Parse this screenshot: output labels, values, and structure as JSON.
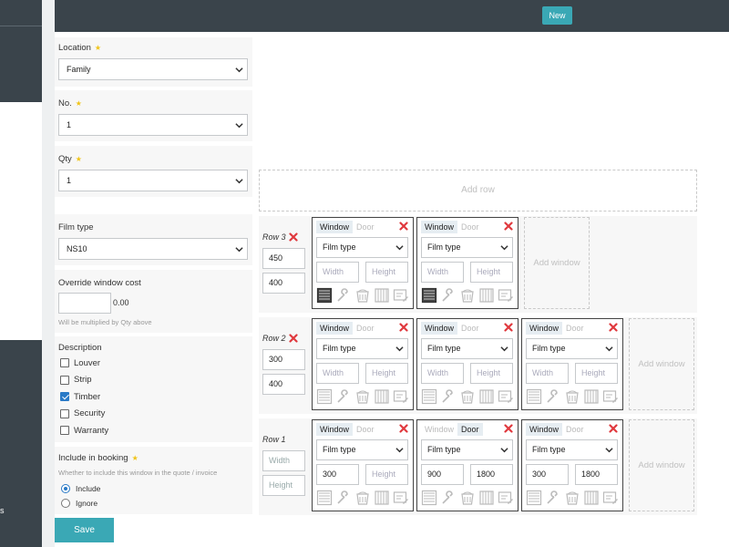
{
  "sidebar": {
    "fragment": "s"
  },
  "header": {
    "new_label": "New"
  },
  "form": {
    "location": {
      "label": "Location",
      "value": "Family"
    },
    "number": {
      "label": "No.",
      "value": "1"
    },
    "qty": {
      "label": "Qty",
      "value": "1"
    },
    "film_type": {
      "label": "Film type",
      "value": "NS10"
    },
    "override": {
      "label": "Override window cost",
      "value": "",
      "computed": "0.00",
      "help": "Will be multiplied by Qty above"
    },
    "description": {
      "label": "Description",
      "options": [
        {
          "label": "Louver",
          "checked": false
        },
        {
          "label": "Strip",
          "checked": false
        },
        {
          "label": "Timber",
          "checked": true
        },
        {
          "label": "Security",
          "checked": false
        },
        {
          "label": "Warranty",
          "checked": false
        }
      ]
    },
    "booking": {
      "label": "Include in booking",
      "help": "Whether to include this window in the quote / invoice",
      "options": [
        {
          "label": "Include",
          "selected": true
        },
        {
          "label": "Ignore",
          "selected": false
        }
      ]
    },
    "save_label": "Save"
  },
  "grid": {
    "add_row_label": "Add row",
    "add_window_label": "Add window",
    "width_placeholder": "Width",
    "height_placeholder": "Height",
    "film_placeholder": "Film type",
    "tab_window": "Window",
    "tab_door": "Door",
    "rows": [
      {
        "label": "Row 3",
        "width": "450",
        "height": "400",
        "windows": [
          {
            "type": "Window",
            "film": "Film type",
            "width": "",
            "height": "",
            "first_icon_active": true
          },
          {
            "type": "Window",
            "film": "Film type",
            "width": "",
            "height": "",
            "first_icon_active": true
          }
        ]
      },
      {
        "label": "Row 2",
        "width": "300",
        "height": "400",
        "windows": [
          {
            "type": "Window",
            "film": "Film type",
            "width": "",
            "height": "",
            "first_icon_active": false
          },
          {
            "type": "Window",
            "film": "Film type",
            "width": "",
            "height": "",
            "first_icon_active": false
          },
          {
            "type": "Window",
            "film": "Film type",
            "width": "",
            "height": "",
            "first_icon_active": false
          }
        ]
      },
      {
        "label": "Row 1",
        "width": "",
        "height": "",
        "windows": [
          {
            "type": "Window",
            "film": "Film type",
            "width": "300",
            "height": "",
            "first_icon_active": false
          },
          {
            "type": "Door",
            "film": "Film type",
            "width": "900",
            "height": "1800",
            "first_icon_active": false
          },
          {
            "type": "Window",
            "film": "Film type",
            "width": "300",
            "height": "1800",
            "first_icon_active": false
          }
        ]
      }
    ]
  },
  "colors": {
    "accent": "#3aa8b5",
    "dark": "#3a444b",
    "danger": "#e0393e",
    "check": "#2979c6"
  }
}
